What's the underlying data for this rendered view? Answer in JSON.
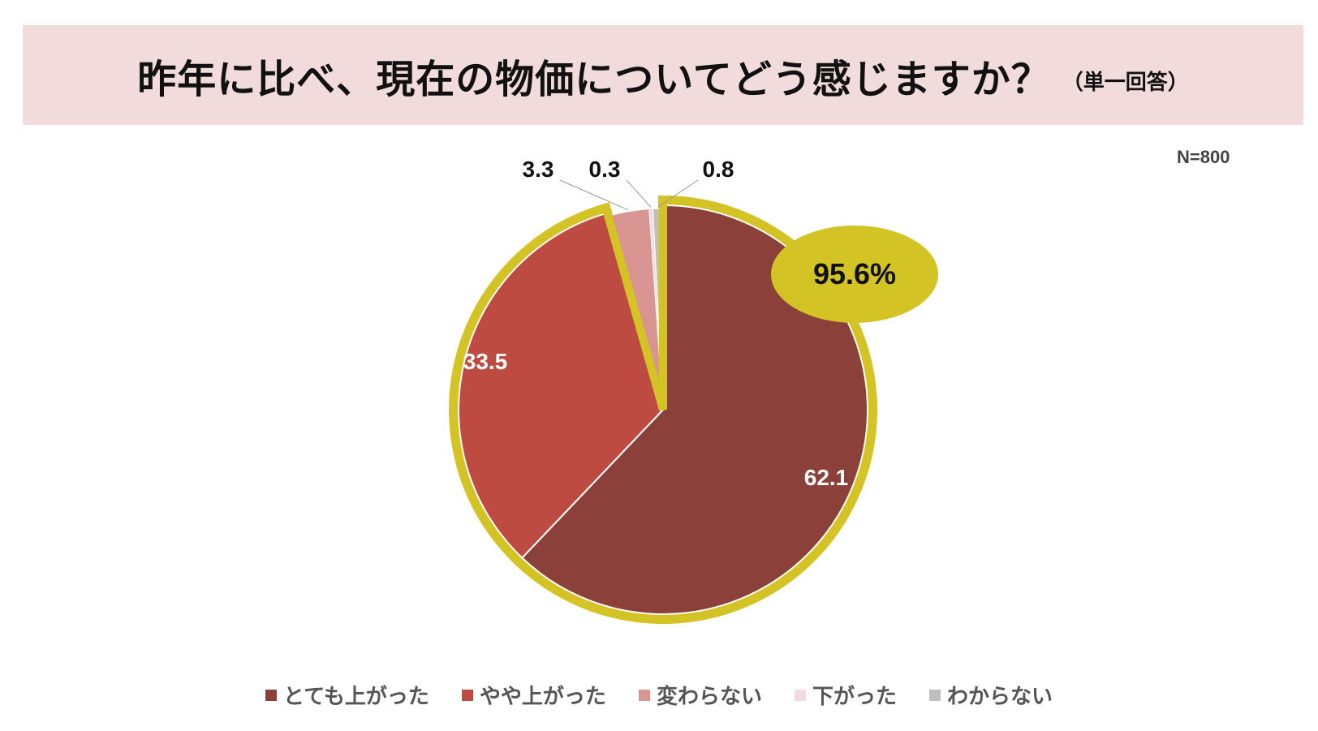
{
  "header": {
    "title": "昨年に比べ、現在の物価についてどう感じますか？",
    "subtitle": "（単一回答）"
  },
  "sample": "N=800",
  "chart_data": {
    "type": "pie",
    "categories": [
      "とても上がった",
      "やや上がった",
      "変わらない",
      "下がった",
      "わからない"
    ],
    "values": [
      62.1,
      33.5,
      3.3,
      0.3,
      0.8
    ],
    "labels": [
      "62.1",
      "33.5",
      "3.3",
      "0.3",
      "0.8"
    ],
    "colors": [
      "#8b4039",
      "#be4b42",
      "#d99592",
      "#f2dcdb",
      "#bfbfbf"
    ],
    "highlight": {
      "label": "95.6%",
      "categories": [
        "とても上がった",
        "やや上がった"
      ],
      "color": "#d4c324"
    },
    "start": "top",
    "direction": "clockwise",
    "legend_position": "bottom"
  }
}
